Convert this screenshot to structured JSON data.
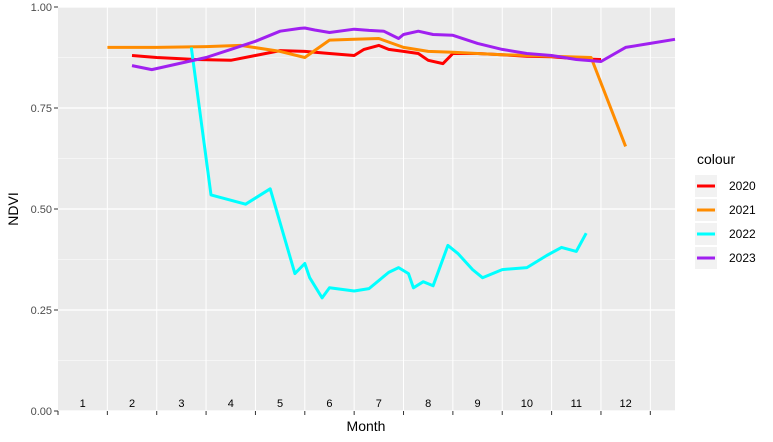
{
  "chart_data": {
    "type": "line",
    "xlabel": "Month",
    "ylabel": "NDVI",
    "xlim": [
      0,
      12.5
    ],
    "ylim": [
      0,
      1
    ],
    "y_ticks": [
      0,
      0.25,
      0.5,
      0.75,
      1
    ],
    "y_tick_labels": [
      "0.00",
      "0.25",
      "0.50",
      "0.75",
      "1.00"
    ],
    "month_labels": [
      "1",
      "2",
      "3",
      "4",
      "5",
      "6",
      "7",
      "8",
      "9",
      "10",
      "11",
      "12"
    ],
    "grid": true,
    "legend": {
      "title": "colour",
      "position": "right"
    },
    "series": [
      {
        "name": "2020",
        "color": "#ff0000",
        "points": [
          [
            1.5,
            0.88
          ],
          [
            2,
            0.875
          ],
          [
            2.5,
            0.872
          ],
          [
            2.8,
            0.87
          ],
          [
            3.5,
            0.868
          ],
          [
            4,
            0.88
          ],
          [
            4.5,
            0.892
          ],
          [
            5,
            0.89
          ],
          [
            5.5,
            0.885
          ],
          [
            6,
            0.88
          ],
          [
            6.2,
            0.895
          ],
          [
            6.5,
            0.905
          ],
          [
            6.7,
            0.895
          ],
          [
            7,
            0.89
          ],
          [
            7.3,
            0.885
          ],
          [
            7.5,
            0.868
          ],
          [
            7.8,
            0.86
          ],
          [
            8,
            0.885
          ],
          [
            8.5,
            0.885
          ],
          [
            9,
            0.882
          ],
          [
            9.5,
            0.878
          ],
          [
            10,
            0.877
          ],
          [
            10.5,
            0.872
          ],
          [
            11,
            0.87
          ]
        ]
      },
      {
        "name": "2021",
        "color": "#ff8c00",
        "points": [
          [
            1,
            0.9
          ],
          [
            2,
            0.9
          ],
          [
            3,
            0.902
          ],
          [
            3.7,
            0.905
          ],
          [
            4.5,
            0.89
          ],
          [
            5,
            0.875
          ],
          [
            5.5,
            0.918
          ],
          [
            6,
            0.92
          ],
          [
            6.5,
            0.922
          ],
          [
            7,
            0.9
          ],
          [
            7.5,
            0.89
          ],
          [
            8,
            0.888
          ],
          [
            9,
            0.882
          ],
          [
            10,
            0.878
          ],
          [
            10.8,
            0.875
          ],
          [
            11.5,
            0.655
          ]
        ]
      },
      {
        "name": "2022",
        "color": "#00ffff",
        "points": [
          [
            2.7,
            0.9
          ],
          [
            3.1,
            0.535
          ],
          [
            3.8,
            0.512
          ],
          [
            4.3,
            0.55
          ],
          [
            4.8,
            0.34
          ],
          [
            5,
            0.365
          ],
          [
            5.1,
            0.33
          ],
          [
            5.35,
            0.28
          ],
          [
            5.5,
            0.305
          ],
          [
            6,
            0.297
          ],
          [
            6.3,
            0.303
          ],
          [
            6.7,
            0.343
          ],
          [
            6.9,
            0.355
          ],
          [
            7.1,
            0.34
          ],
          [
            7.2,
            0.305
          ],
          [
            7.4,
            0.32
          ],
          [
            7.6,
            0.31
          ],
          [
            7.9,
            0.41
          ],
          [
            8.1,
            0.39
          ],
          [
            8.4,
            0.35
          ],
          [
            8.6,
            0.33
          ],
          [
            9,
            0.35
          ],
          [
            9.5,
            0.355
          ],
          [
            9.9,
            0.385
          ],
          [
            10.2,
            0.405
          ],
          [
            10.5,
            0.395
          ],
          [
            10.7,
            0.44
          ]
        ]
      },
      {
        "name": "2023",
        "color": "#a020f0",
        "points": [
          [
            1.5,
            0.855
          ],
          [
            1.9,
            0.845
          ],
          [
            3,
            0.875
          ],
          [
            3.5,
            0.895
          ],
          [
            4,
            0.915
          ],
          [
            4.5,
            0.94
          ],
          [
            4.9,
            0.947
          ],
          [
            5,
            0.948
          ],
          [
            5.2,
            0.943
          ],
          [
            5.5,
            0.937
          ],
          [
            6,
            0.945
          ],
          [
            6.3,
            0.942
          ],
          [
            6.6,
            0.94
          ],
          [
            6.9,
            0.922
          ],
          [
            7,
            0.932
          ],
          [
            7.3,
            0.94
          ],
          [
            7.6,
            0.932
          ],
          [
            8,
            0.93
          ],
          [
            8.5,
            0.91
          ],
          [
            9,
            0.895
          ],
          [
            9.5,
            0.885
          ],
          [
            10,
            0.88
          ],
          [
            10.5,
            0.87
          ],
          [
            11,
            0.865
          ],
          [
            11.5,
            0.9
          ],
          [
            12,
            0.91
          ],
          [
            12.5,
            0.92
          ]
        ]
      }
    ]
  }
}
